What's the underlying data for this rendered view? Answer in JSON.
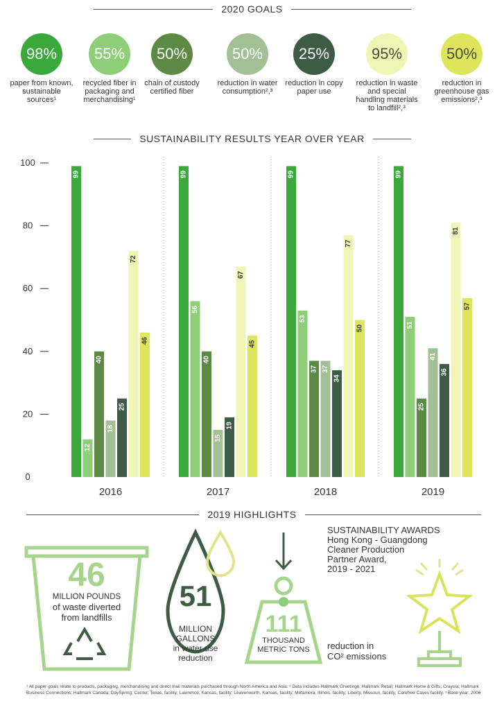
{
  "goals_section": {
    "title": "2020 GOALS",
    "goals": [
      {
        "pct": "98%",
        "text": "paper from known, sustainable sources¹",
        "color": "#3aa83a",
        "dark": false
      },
      {
        "pct": "55%",
        "text": "recycled fiber in packaging and merchandising¹",
        "color": "#8fce78",
        "dark": false
      },
      {
        "pct": "50%",
        "text": "chain of custody certified fiber",
        "color": "#5c8a45",
        "dark": false
      },
      {
        "pct": "50%",
        "text": "reduction in water consumption²,³",
        "color": "#a3bf96",
        "dark": false
      },
      {
        "pct": "25%",
        "text": "reduction in copy paper use",
        "color": "#3e5b46",
        "dark": false
      },
      {
        "pct": "95%",
        "text": "reduction in waste and special handling materials to landfill²,³",
        "color": "#eff5b5",
        "dark": true
      },
      {
        "pct": "50%",
        "text": "reduction in greenhouse gas emissions²,³",
        "color": "#dde65a",
        "dark": true
      }
    ]
  },
  "chart_section": {
    "title": "SUSTAINABILITY RESULTS YEAR OVER YEAR"
  },
  "chart_data": {
    "type": "bar",
    "categories": [
      "2016",
      "2017",
      "2018",
      "2019"
    ],
    "ylim": [
      0,
      100
    ],
    "yticks": [
      0,
      20,
      40,
      60,
      80,
      100
    ],
    "series_colors": [
      "#3aa83a",
      "#8fce78",
      "#5c8a45",
      "#a3bf96",
      "#3e5b46",
      "#eff5b5",
      "#dde65a"
    ],
    "label_dark": [
      false,
      false,
      false,
      false,
      false,
      true,
      true
    ],
    "values": [
      [
        99,
        12,
        40,
        18,
        25,
        72,
        46
      ],
      [
        99,
        56,
        40,
        15,
        19,
        67,
        45
      ],
      [
        99,
        53,
        37,
        37,
        34,
        77,
        50
      ],
      [
        99,
        51,
        25,
        41,
        36,
        81,
        57
      ]
    ]
  },
  "highlights": {
    "title": "2019 HIGHLIGHTS",
    "waste_num": "46",
    "waste_line1": "MILLION POUNDS",
    "waste_line2": "of waste diverted",
    "waste_line3": "from landfills",
    "water_num": "51",
    "water_line1": "MILLION",
    "water_line2": "GALLONS",
    "water_line3": "in water use",
    "water_line4": "reduction",
    "co2_num": "111",
    "co2_line1": "THOUSAND",
    "co2_line2": "METRIC TONS",
    "co2_line3": "reduction in",
    "co2_line4": "CO² emissions",
    "awards_title": "SUSTAINABILITY AWARDS",
    "awards_line1": "Hong Kong - Guangdong",
    "awards_line2": "Cleaner Production",
    "awards_line3": "Partner Award,",
    "awards_line4": "2019 - 2021"
  },
  "footnote": "¹ All paper goals relate to products, packaging, merchandising and direct mail materials purchased through North America and Asia. ² Data includes Hallmark Greetings; Hallmark Retail; Hallmark Home & Gifts; Crayola; Hallmark Business Connections; Hallmark Canada; DaySpring; Center, Texas, facility; Lawrence, Kansas, facility; Leavenworth, Kansas, facility; Metamora, Illinois, facility; Liberty, Missouri, facility; Carefree Caves facility. ³ Base year: 2006"
}
